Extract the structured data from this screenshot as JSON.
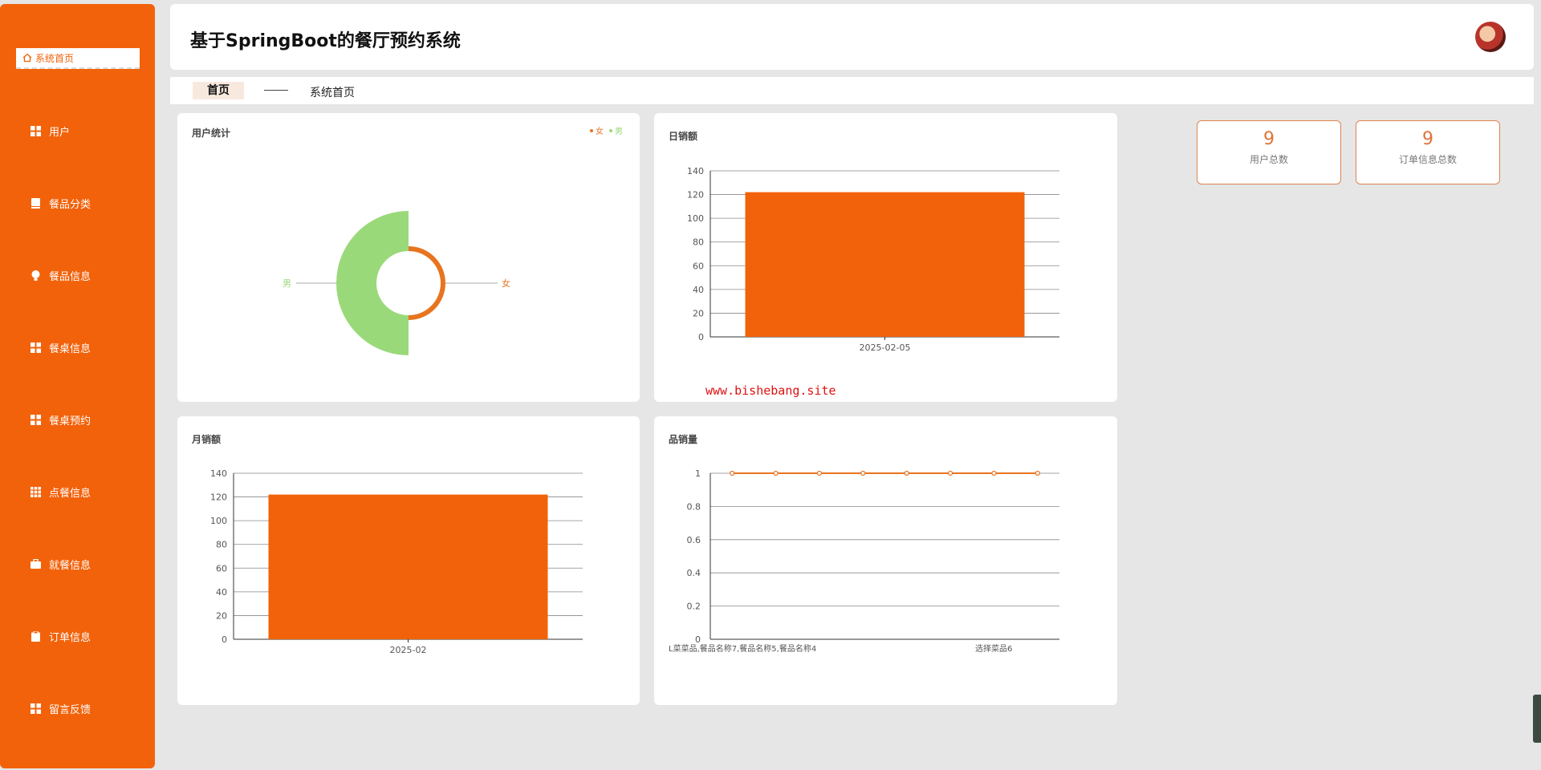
{
  "app": {
    "title": "基于SpringBoot的餐厅预约系统"
  },
  "sidebar": {
    "home": {
      "label": "系统首页",
      "icon": "home-icon"
    },
    "items": [
      {
        "label": "用户",
        "icon": "grid-icon"
      },
      {
        "label": "餐品分类",
        "icon": "book-icon"
      },
      {
        "label": "餐品信息",
        "icon": "bulb-icon"
      },
      {
        "label": "餐桌信息",
        "icon": "grid-icon"
      },
      {
        "label": "餐桌预约",
        "icon": "grid-icon"
      },
      {
        "label": "点餐信息",
        "icon": "table-icon"
      },
      {
        "label": "就餐信息",
        "icon": "briefcase-icon"
      },
      {
        "label": "订单信息",
        "icon": "clipboard-icon"
      },
      {
        "label": "留言反馈",
        "icon": "grid-icon"
      }
    ]
  },
  "breadcrumb": {
    "root": "首页",
    "current": "系统首页"
  },
  "stats": [
    {
      "value": "9",
      "label": "用户总数"
    },
    {
      "value": "9",
      "label": "订单信息总数"
    }
  ],
  "cards": {
    "user_stats": {
      "title": "用户统计",
      "legend": [
        "女",
        "男"
      ]
    },
    "daily_sales": {
      "title": "日销额"
    },
    "monthly_sales": {
      "title": "月销额"
    },
    "product_sales": {
      "title": "品销量"
    }
  },
  "watermark": "www.bishebang.site",
  "colors": {
    "accent": "#f2620a",
    "female": "#e8741f",
    "male": "#9ad97a",
    "card_border": "#e08352"
  },
  "chart_data": [
    {
      "type": "pie",
      "title": "用户统计",
      "legend": [
        "女",
        "男"
      ],
      "slices": [
        {
          "name": "男",
          "value": 5
        },
        {
          "name": "女",
          "value": 4
        }
      ],
      "legend_position": "top-right"
    },
    {
      "type": "bar",
      "title": "日销额",
      "categories": [
        "2025-02-05"
      ],
      "values": [
        122
      ],
      "ylim": [
        0,
        140
      ],
      "yticks": [
        0,
        20,
        40,
        60,
        80,
        100,
        120,
        140
      ],
      "grid": true
    },
    {
      "type": "bar",
      "title": "月销额",
      "categories": [
        "2025-02"
      ],
      "values": [
        122
      ],
      "ylim": [
        0,
        140
      ],
      "yticks": [
        0,
        20,
        40,
        60,
        80,
        100,
        120,
        140
      ],
      "grid": true
    },
    {
      "type": "line",
      "title": "品销量",
      "values": [
        1,
        1,
        1,
        1,
        1,
        1,
        1,
        1
      ],
      "xtick_labels": [
        "L菜菜品,餐品名称7,餐品名称5,餐品名称4",
        "选择菜品6"
      ],
      "ylim": [
        0,
        1
      ],
      "yticks": [
        "0",
        "0.2",
        "0.4",
        "0.6",
        "0.8",
        "1"
      ],
      "grid": true
    }
  ]
}
